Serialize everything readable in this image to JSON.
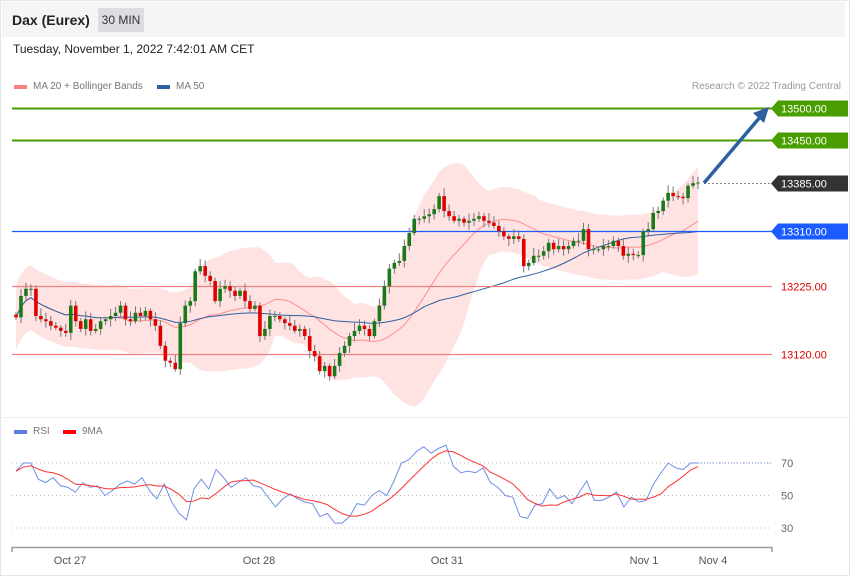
{
  "header": {
    "title": "Dax (Eurex)",
    "timeframe": "30 MIN"
  },
  "timestamp": "Tuesday, November 1, 2022 7:42:01 AM CET",
  "legend": {
    "bollinger": "MA 20 + Bollinger Bands",
    "ma50": "MA 50",
    "bollinger_color": "#ff7f7f",
    "ma50_color": "#2e5fa0"
  },
  "credit": "Research © 2022 Trading Central",
  "levels": [
    {
      "label": "13500.00",
      "value": 13500,
      "kind": "target",
      "color": "#4a9e00"
    },
    {
      "label": "13450.00",
      "value": 13450,
      "kind": "target",
      "color": "#4a9e00"
    },
    {
      "label": "13385.00",
      "value": 13385,
      "kind": "last",
      "color": "#333333"
    },
    {
      "label": "13310.00",
      "value": 13310,
      "kind": "pivot",
      "color": "#1a5cff"
    },
    {
      "label": "13225.00",
      "value": 13225,
      "kind": "support",
      "color": "#e00000"
    },
    {
      "label": "13120.00",
      "value": 13120,
      "kind": "support",
      "color": "#e00000"
    }
  ],
  "closes": [
    13177,
    13210,
    13221,
    13221,
    13179,
    13174,
    13171,
    13164,
    13161,
    13156,
    13153,
    13195,
    13171,
    13159,
    13174,
    13156,
    13159,
    13171,
    13174,
    13179,
    13184,
    13195,
    13174,
    13171,
    13184,
    13179,
    13187,
    13174,
    13164,
    13133,
    13110,
    13107,
    13097,
    13168,
    13195,
    13202,
    13248,
    13256,
    13241,
    13233,
    13202,
    13221,
    13225,
    13218,
    13210,
    13218,
    13202,
    13190,
    13195,
    13148,
    13159,
    13179,
    13179,
    13174,
    13168,
    13164,
    13156,
    13159,
    13148,
    13125,
    13117,
    13094,
    13102,
    13086,
    13102,
    13122,
    13133,
    13148,
    13156,
    13164,
    13159,
    13148,
    13171,
    13195,
    13225,
    13252,
    13261,
    13264,
    13287,
    13307,
    13329,
    13329,
    13333,
    13336,
    13344,
    13364,
    13341,
    13333,
    13326,
    13329,
    13323,
    13326,
    13329,
    13333,
    13326,
    13323,
    13318,
    13310,
    13302,
    13298,
    13302,
    13298,
    13256,
    13261,
    13272,
    13272,
    13279,
    13292,
    13282,
    13287,
    13282,
    13287,
    13295,
    13295,
    13313,
    13282,
    13282,
    13282,
    13287,
    13287,
    13295,
    13287,
    13272,
    13275,
    13273,
    13273,
    13310,
    13313,
    13338,
    13341,
    13357,
    13369,
    13364,
    13363,
    13361,
    13380,
    13384,
    13385
  ],
  "rsi_panel": {
    "legend": {
      "rsi": "RSI",
      "ma": "9MA",
      "rsi_color": "#5b7fe0",
      "ma_color": "#ff0000"
    },
    "levels": [
      "70",
      "50",
      "30"
    ],
    "rsi": [
      65,
      70,
      70,
      60,
      58,
      61,
      56,
      55,
      52,
      58,
      55,
      56,
      50,
      53,
      57,
      59,
      57,
      61,
      53,
      48,
      57,
      46,
      39,
      35,
      54,
      60,
      54,
      66,
      61,
      55,
      58,
      61,
      56,
      55,
      49,
      43,
      48,
      51,
      48,
      46,
      45,
      37,
      39,
      33,
      33,
      37,
      45,
      44,
      50,
      53,
      50,
      59,
      70,
      72,
      77,
      80,
      76,
      79,
      81,
      68,
      64,
      65,
      64,
      67,
      58,
      55,
      50,
      49,
      37,
      36,
      44,
      45,
      54,
      48,
      50,
      45,
      52,
      59,
      47,
      47,
      49,
      52,
      43,
      49,
      46,
      47,
      57,
      64,
      70,
      67,
      66,
      70,
      70
    ]
  },
  "xaxis": [
    "Oct 27",
    "Oct 28",
    "Oct 31",
    "Nov 1",
    "Nov 4"
  ]
}
